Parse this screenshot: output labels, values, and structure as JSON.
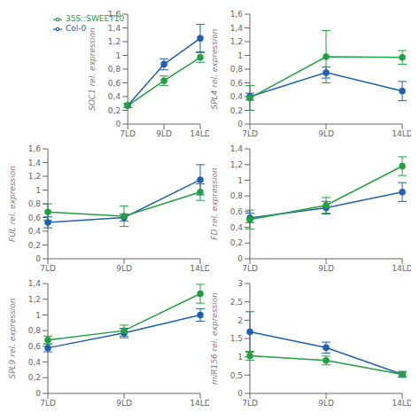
{
  "chart_data": [
    {
      "type": "line",
      "ylabel": "SOC1 rel. expression",
      "categories": [
        "7LD",
        "9LD",
        "14LD"
      ],
      "ylim": [
        0,
        1.6
      ],
      "yticks": [
        0,
        {
          "value": 0.2,
          "label": "0,2"
        },
        {
          "value": 0.4,
          "label": "0,4"
        },
        {
          "value": 0.6,
          "label": "0,6"
        },
        {
          "value": 0.8,
          "label": "0,8"
        },
        1,
        {
          "value": 1.2,
          "label": "1,2"
        },
        {
          "value": 1.4,
          "label": "1,4"
        },
        {
          "value": 1.6,
          "label": "1,6"
        }
      ],
      "legend": "upper left",
      "series": [
        {
          "name": "Col-0",
          "color": "#2060b0",
          "marker": "circle",
          "values": [
            0.27,
            0.87,
            1.25
          ],
          "errors": [
            0.03,
            0.08,
            0.2
          ]
        },
        {
          "name": "35S::SWEET10",
          "color": "#22a040",
          "marker": "circle",
          "values": [
            0.27,
            0.63,
            0.97
          ],
          "errors": [
            0.03,
            0.07,
            0.07
          ]
        }
      ]
    },
    {
      "type": "line",
      "ylabel": "SPL4 rel. expression",
      "categories": [
        "7LD",
        "9LD",
        "14LD"
      ],
      "ylim": [
        0,
        1.6
      ],
      "yticks": [
        0,
        {
          "value": 0.2,
          "label": "0,2"
        },
        {
          "value": 0.4,
          "label": "0,4"
        },
        {
          "value": 0.6,
          "label": "0,6"
        },
        {
          "value": 0.8,
          "label": "0,8"
        },
        1,
        {
          "value": 1.2,
          "label": "1,2"
        },
        {
          "value": 1.4,
          "label": "1,4"
        },
        {
          "value": 1.6,
          "label": "1,6"
        }
      ],
      "series": [
        {
          "name": "Col-0",
          "color": "#2060b0",
          "marker": "circle",
          "values": [
            0.4,
            0.75,
            0.48
          ],
          "errors": [
            0.05,
            0.08,
            0.14
          ]
        },
        {
          "name": "35S::SWEET10",
          "color": "#22a040",
          "marker": "circle",
          "values": [
            0.38,
            0.98,
            0.97
          ],
          "errors": [
            0.18,
            0.38,
            0.1
          ]
        }
      ]
    },
    {
      "type": "line",
      "ylabel": "FUL rel. expression",
      "categories": [
        "7LD",
        "9LD",
        "14LD"
      ],
      "ylim": [
        0,
        1.6
      ],
      "yticks": [
        0,
        {
          "value": 0.2,
          "label": "0,2"
        },
        {
          "value": 0.4,
          "label": "0,4"
        },
        {
          "value": 0.6,
          "label": "0,6"
        },
        {
          "value": 0.8,
          "label": "0,8"
        },
        1,
        {
          "value": 1.2,
          "label": "1,2"
        },
        {
          "value": 1.4,
          "label": "1,4"
        },
        {
          "value": 1.6,
          "label": "1,6"
        }
      ],
      "series": [
        {
          "name": "Col-0",
          "color": "#2060b0",
          "marker": "circle",
          "values": [
            0.53,
            0.6,
            1.15
          ],
          "errors": [
            0.08,
            0.05,
            0.22
          ]
        },
        {
          "name": "35S::SWEET10",
          "color": "#22a040",
          "marker": "circle",
          "values": [
            0.68,
            0.62,
            0.97
          ],
          "errors": [
            0.12,
            0.15,
            0.12
          ]
        }
      ]
    },
    {
      "type": "line",
      "ylabel": "FD rel. expression",
      "categories": [
        "7LD",
        "9LD",
        "14LD"
      ],
      "ylim": [
        0,
        1.4
      ],
      "yticks": [
        0,
        {
          "value": 0.2,
          "label": "0,2"
        },
        {
          "value": 0.4,
          "label": "0,4"
        },
        {
          "value": 0.6,
          "label": "0,6"
        },
        {
          "value": 0.8,
          "label": "0,8"
        },
        1,
        {
          "value": 1.2,
          "label": "1,2"
        },
        {
          "value": 1.4,
          "label": "1,4"
        }
      ],
      "series": [
        {
          "name": "Col-0",
          "color": "#2060b0",
          "marker": "circle",
          "values": [
            0.52,
            0.65,
            0.85
          ],
          "errors": [
            0.06,
            0.08,
            0.12
          ]
        },
        {
          "name": "35S::SWEET10",
          "color": "#22a040",
          "marker": "circle",
          "values": [
            0.5,
            0.68,
            1.18
          ],
          "errors": [
            0.12,
            0.1,
            0.12
          ]
        }
      ]
    },
    {
      "type": "line",
      "ylabel": "SPL9 rel. expression",
      "categories": [
        "7LD",
        "9LD",
        "14LD"
      ],
      "ylim": [
        0,
        1.4
      ],
      "yticks": [
        0,
        {
          "value": 0.2,
          "label": "0,2"
        },
        {
          "value": 0.4,
          "label": "0,4"
        },
        {
          "value": 0.6,
          "label": "0,6"
        },
        {
          "value": 0.8,
          "label": "0,8"
        },
        1,
        {
          "value": 1.2,
          "label": "1,2"
        },
        {
          "value": 1.4,
          "label": "1,4"
        }
      ],
      "series": [
        {
          "name": "Col-0",
          "color": "#2060b0",
          "marker": "circle",
          "values": [
            0.58,
            0.77,
            1.0
          ],
          "errors": [
            0.05,
            0.06,
            0.08
          ]
        },
        {
          "name": "35S::SWEET10",
          "color": "#22a040",
          "marker": "circle",
          "values": [
            0.68,
            0.8,
            1.27
          ],
          "errors": [
            0.05,
            0.07,
            0.12
          ]
        }
      ]
    },
    {
      "type": "line",
      "ylabel": "miR156 rel. expression",
      "categories": [
        "7LD",
        "9LD",
        "14LD"
      ],
      "ylim": [
        0,
        3.0
      ],
      "yticks": [
        0,
        {
          "value": 0.5,
          "label": "0,5"
        },
        1,
        {
          "value": 1.5,
          "label": "1,5"
        },
        2,
        {
          "value": 2.5,
          "label": "2,5"
        },
        3
      ],
      "series": [
        {
          "name": "Col-0",
          "color": "#2060b0",
          "marker": "circle",
          "values": [
            1.68,
            1.25,
            0.52
          ],
          "errors": [
            0.55,
            0.15,
            0.08
          ]
        },
        {
          "name": "35S::SWEET10",
          "color": "#22a040",
          "marker": "circle",
          "values": [
            1.03,
            0.9,
            0.52
          ],
          "errors": [
            0.12,
            0.12,
            0.06
          ]
        }
      ]
    }
  ]
}
